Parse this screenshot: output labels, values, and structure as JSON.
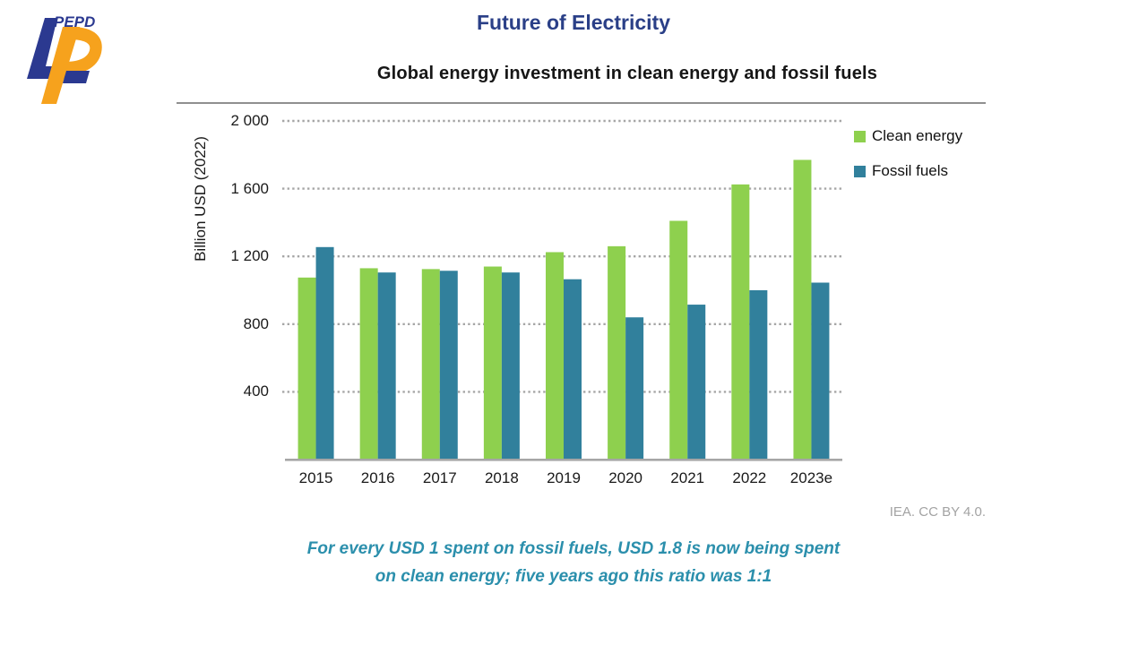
{
  "logo": {
    "text": "PEPD"
  },
  "header": {
    "title": "Future of Electricity"
  },
  "chart_data": {
    "type": "bar",
    "title": "Global energy investment in clean energy and fossil fuels",
    "ylabel": "Billion USD (2022)",
    "xlabel": "",
    "categories": [
      "2015",
      "2016",
      "2017",
      "2018",
      "2019",
      "2020",
      "2021",
      "2022",
      "2023e"
    ],
    "series": [
      {
        "name": "Clean energy",
        "color": "#8ed04e",
        "values": [
          1075,
          1130,
          1125,
          1140,
          1225,
          1260,
          1410,
          1625,
          1770
        ]
      },
      {
        "name": "Fossil fuels",
        "color": "#31809c",
        "values": [
          1255,
          1105,
          1115,
          1105,
          1065,
          840,
          915,
          1000,
          1045
        ]
      }
    ],
    "ylim": [
      0,
      2000
    ],
    "yticks": [
      400,
      800,
      1200,
      1600,
      2000
    ],
    "ytick_labels": [
      "400",
      "800",
      "1 200",
      "1 600",
      "2 000"
    ],
    "grid": "horizontal dotted",
    "gridline_color": "#a6a6a6",
    "axis_line_color": "#a6a6a6",
    "legend_position": "top-right"
  },
  "attribution": "IEA. CC BY 4.0.",
  "caption": {
    "line1": "For every USD 1 spent on fossil fuels, USD 1.8 is now being spent",
    "line2": "on clean energy; five years ago this ratio was 1:1"
  },
  "colors": {
    "header_title": "#2a3f87",
    "caption": "#2b8fac",
    "logo_blue": "#2b3990",
    "logo_orange": "#f6a21d",
    "clean_energy": "#8ed04e",
    "fossil_fuels": "#31809c"
  }
}
